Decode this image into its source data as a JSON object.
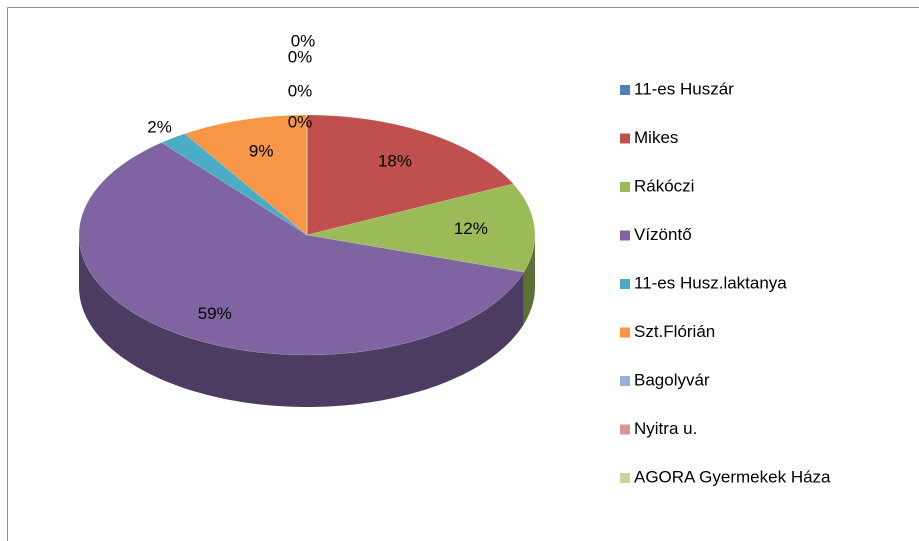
{
  "chart_data": {
    "type": "pie",
    "categories": [
      "11-es Huszár",
      "Mikes",
      "Rákóczi",
      "Vízöntő",
      "11-es Husz.laktanya",
      "Szt.Flórián",
      "Bagolyvár",
      "Nyitra u.",
      "AGORA Gyermekek Háza"
    ],
    "values": [
      0,
      18,
      12,
      59,
      2,
      9,
      0,
      0,
      0
    ],
    "value_labels": [
      "0%",
      "18%",
      "12%",
      "59%",
      "2%",
      "9%",
      "0%",
      "0%",
      "0%"
    ],
    "colors": [
      "#4f81bd",
      "#c0504d",
      "#9bbb59",
      "#8064a2",
      "#4bacc6",
      "#f79646",
      "#95b3d7",
      "#d99694",
      "#c3d69b"
    ],
    "legend": "right"
  }
}
